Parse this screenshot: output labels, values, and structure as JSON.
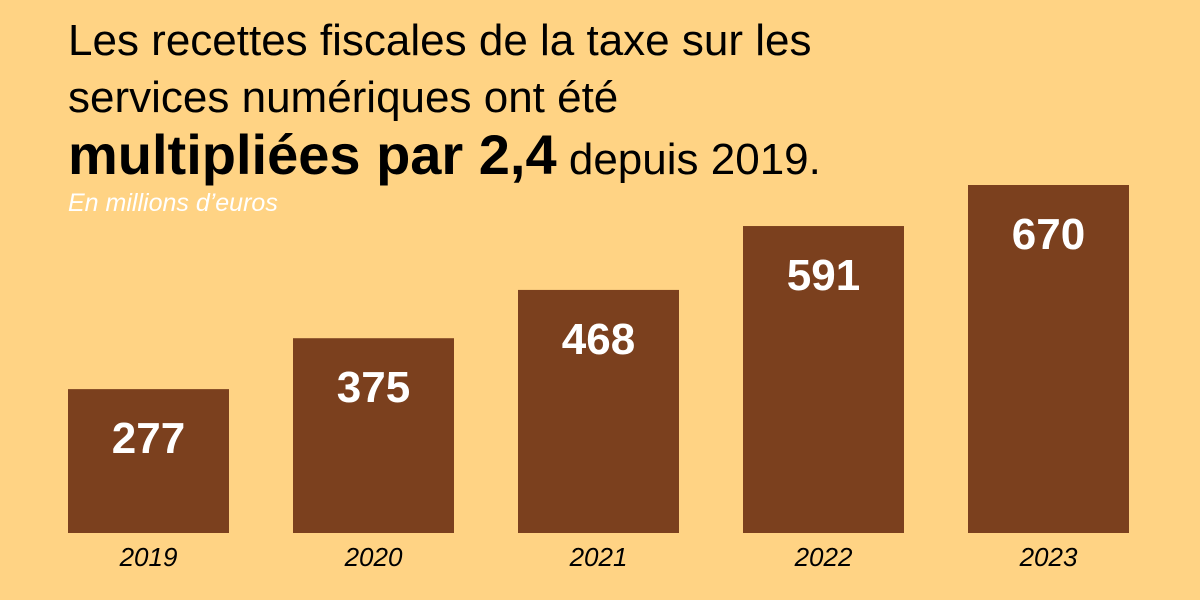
{
  "colors": {
    "background": "#FFD384",
    "bar": "#7B401E",
    "bar_label": "#FFFFFF",
    "title": "#000000",
    "subtitle": "#FFFFFF"
  },
  "chart_data": {
    "type": "bar",
    "title": {
      "line1": "Les recettes fiscales de la taxe sur les",
      "line2": "services numériques ont été",
      "line3_strong": "multipliées par 2,4",
      "line3_rest": " depuis 2019."
    },
    "subtitle": "En millions d’euros",
    "categories": [
      "2019",
      "2020",
      "2021",
      "2022",
      "2023"
    ],
    "values": [
      277,
      375,
      468,
      591,
      670
    ],
    "data_labels": [
      "277",
      "375",
      "468",
      "591",
      "670"
    ],
    "xlabel": "",
    "ylabel": "",
    "ylim": [
      0,
      670
    ],
    "grid": false,
    "legend": "none"
  }
}
